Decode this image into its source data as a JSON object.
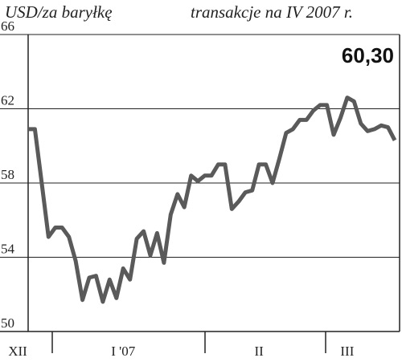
{
  "chart_data": {
    "type": "line",
    "title": "USD/za baryłkę",
    "subtitle": "transakcje na IV 2007 r.",
    "categories": [
      "XII",
      null,
      null,
      null,
      null,
      null,
      null,
      null,
      null,
      null,
      null,
      null,
      null,
      null,
      "I '07",
      null,
      null,
      null,
      null,
      null,
      null,
      null,
      null,
      null,
      null,
      null,
      null,
      null,
      null,
      null,
      null,
      null,
      null,
      null,
      "II",
      null,
      null,
      null,
      null,
      null,
      null,
      null,
      null,
      null,
      null,
      null,
      null,
      "III",
      null,
      null,
      null,
      null,
      null,
      null,
      null
    ],
    "series": [
      {
        "color": "#5a5a5a",
        "values": [
          60.9,
          60.9,
          58.0,
          55.1,
          55.6,
          55.6,
          55.1,
          53.8,
          51.7,
          52.9,
          53.0,
          51.6,
          52.8,
          51.8,
          53.4,
          52.8,
          55.0,
          55.4,
          54.1,
          55.3,
          53.7,
          56.3,
          57.4,
          56.7,
          58.4,
          58.1,
          58.4,
          58.4,
          59.0,
          59.0,
          56.6,
          57.0,
          57.5,
          57.6,
          59.0,
          59.0,
          58.0,
          59.3,
          60.7,
          60.9,
          61.4,
          61.4,
          61.9,
          62.2,
          62.2,
          60.6,
          61.5,
          62.6,
          62.4,
          61.2,
          60.8,
          60.9,
          61.1,
          61.0,
          60.3
        ],
        "value_labels": [
          null,
          null,
          null,
          null,
          null,
          null,
          null,
          null,
          null,
          null,
          null,
          null,
          null,
          null,
          null,
          null,
          null,
          null,
          null,
          null,
          null,
          null,
          null,
          null,
          null,
          null,
          null,
          null,
          null,
          null,
          null,
          null,
          null,
          null,
          null,
          null,
          null,
          null,
          null,
          null,
          null,
          null,
          null,
          null,
          null,
          null,
          null,
          null,
          null,
          null,
          null,
          null,
          null,
          null,
          "60,30"
        ]
      }
    ],
    "ylim": [
      50,
      66
    ],
    "yticks": [
      50,
      54,
      58,
      62,
      66
    ],
    "grid": true
  }
}
